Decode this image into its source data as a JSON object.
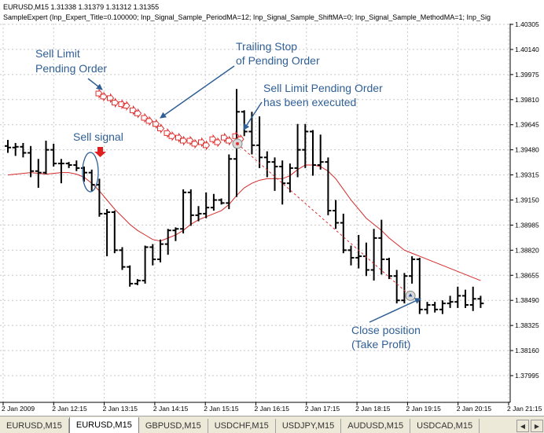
{
  "header": {
    "line1": "EURUSD,M15  1.31338 1.31379 1.31312 1.31355",
    "line2": "SampleExpert (Inp_Expert_Title=0.100000; Inp_Signal_Sample_PeriodMA=12; Inp_Signal_Sample_ShiftMA=0; Inp_Signal_Sample_MethodMA=1; Inp_Sig"
  },
  "annotations": {
    "sell_limit": [
      "Sell Limit",
      "Pending Order"
    ],
    "trailing": [
      "Trailing Stop",
      "of Pending Order"
    ],
    "executed": [
      "Sell Limit Pending Order",
      "has been executed"
    ],
    "sell_signal": "Sell signal",
    "close": [
      "Close position",
      "(Take Profit)"
    ]
  },
  "tabs": [
    {
      "label": "EURUSD,M15",
      "active": false
    },
    {
      "label": "EURUSD,M15",
      "active": true
    },
    {
      "label": "GBPUSD,M15",
      "active": false
    },
    {
      "label": "USDCHF,M15",
      "active": false
    },
    {
      "label": "USDJPY,M15",
      "active": false
    },
    {
      "label": "AUDUSD,M15",
      "active": false
    },
    {
      "label": "USDCAD,M15",
      "active": false
    }
  ],
  "colors": {
    "grid": "#c8c8c8",
    "candle": "#000000",
    "ma": "#d42a2a",
    "annotation": "#2f5f95",
    "pending": "#e03030"
  },
  "chart_data": {
    "type": "ohlc",
    "symbol": "EURUSD",
    "timeframe": "M15",
    "y_ticks": [
      "1.40305",
      "1.40140",
      "1.39975",
      "1.39810",
      "1.39645",
      "1.39480",
      "1.39315",
      "1.39150",
      "1.38985",
      "1.38820",
      "1.38655",
      "1.38490",
      "1.38325",
      "1.38160",
      "1.37995"
    ],
    "x_ticks": [
      "2 Jan 2009",
      "2 Jan 12:15",
      "2 Jan 13:15",
      "2 Jan 14:15",
      "2 Jan 15:15",
      "2 Jan 16:15",
      "2 Jan 17:15",
      "2 Jan 18:15",
      "2 Jan 19:15",
      "2 Jan 20:15",
      "2 Jan 21:15"
    ],
    "bars": [
      [
        1.39505,
        1.39545,
        1.3946,
        1.39495
      ],
      [
        1.39495,
        1.39525,
        1.3944,
        1.395
      ],
      [
        1.395,
        1.39525,
        1.3943,
        1.3946
      ],
      [
        1.3946,
        1.39505,
        1.393,
        1.3934
      ],
      [
        1.3934,
        1.3942,
        1.3923,
        1.3933
      ],
      [
        1.3933,
        1.3954,
        1.3932,
        1.3948
      ],
      [
        1.3948,
        1.3952,
        1.3937,
        1.3939
      ],
      [
        1.3939,
        1.3942,
        1.3926,
        1.3939
      ],
      [
        1.3939,
        1.394,
        1.3936,
        1.3938
      ],
      [
        1.3938,
        1.3941,
        1.3934,
        1.3936
      ],
      [
        1.3936,
        1.3937,
        1.3927,
        1.3933
      ],
      [
        1.3933,
        1.3935,
        1.3921,
        1.3925
      ],
      [
        1.3925,
        1.3929,
        1.3904,
        1.3906
      ],
      [
        1.3906,
        1.3909,
        1.3878,
        1.3907
      ],
      [
        1.3907,
        1.3908,
        1.388,
        1.3882
      ],
      [
        1.3882,
        1.3884,
        1.3869,
        1.3871
      ],
      [
        1.3871,
        1.3872,
        1.3858,
        1.386
      ],
      [
        1.386,
        1.3863,
        1.3859,
        1.3862
      ],
      [
        1.3862,
        1.3885,
        1.386,
        1.3884
      ],
      [
        1.3884,
        1.3886,
        1.3872,
        1.3876
      ],
      [
        1.3876,
        1.3889,
        1.3874,
        1.3886
      ],
      [
        1.3886,
        1.3896,
        1.3879,
        1.3895
      ],
      [
        1.3895,
        1.3897,
        1.3888,
        1.3896
      ],
      [
        1.3896,
        1.3922,
        1.3893,
        1.392
      ],
      [
        1.392,
        1.3922,
        1.3898,
        1.3905
      ],
      [
        1.3905,
        1.3911,
        1.3901,
        1.3906
      ],
      [
        1.3906,
        1.392,
        1.3903,
        1.391
      ],
      [
        1.391,
        1.3919,
        1.3908,
        1.3915
      ],
      [
        1.3915,
        1.3916,
        1.3912,
        1.3913
      ],
      [
        1.3913,
        1.3945,
        1.3909,
        1.3942
      ],
      [
        1.3942,
        1.3988,
        1.3917,
        1.3973
      ],
      [
        1.3973,
        1.3974,
        1.3957,
        1.396
      ],
      [
        1.396,
        1.3973,
        1.3945,
        1.3951
      ],
      [
        1.3951,
        1.397,
        1.3936,
        1.3943
      ],
      [
        1.3943,
        1.3947,
        1.393,
        1.394
      ],
      [
        1.394,
        1.3943,
        1.3921,
        1.3937
      ],
      [
        1.3937,
        1.3941,
        1.3912,
        1.3926
      ],
      [
        1.3926,
        1.3939,
        1.392,
        1.3936
      ],
      [
        1.3936,
        1.3965,
        1.393,
        1.3948
      ],
      [
        1.3948,
        1.3965,
        1.3936,
        1.396
      ],
      [
        1.396,
        1.3961,
        1.3931,
        1.3938
      ],
      [
        1.3938,
        1.3958,
        1.3935,
        1.394
      ],
      [
        1.394,
        1.3943,
        1.3905,
        1.3908
      ],
      [
        1.3908,
        1.3915,
        1.3896,
        1.39
      ],
      [
        1.39,
        1.3906,
        1.388,
        1.3882
      ],
      [
        1.3882,
        1.3885,
        1.3872,
        1.3877
      ],
      [
        1.3877,
        1.3892,
        1.387,
        1.3878
      ],
      [
        1.3878,
        1.3887,
        1.3865,
        1.3869
      ],
      [
        1.3869,
        1.3896,
        1.3862,
        1.389
      ],
      [
        1.389,
        1.3902,
        1.3866,
        1.3876
      ],
      [
        1.3876,
        1.3877,
        1.3863,
        1.3865
      ],
      [
        1.3865,
        1.3869,
        1.3847,
        1.3849
      ],
      [
        1.3849,
        1.3867,
        1.3847,
        1.3865
      ],
      [
        1.3865,
        1.3878,
        1.386,
        1.3876
      ],
      [
        1.3876,
        1.3877,
        1.384,
        1.3843
      ],
      [
        1.3843,
        1.3848,
        1.384,
        1.3846
      ],
      [
        1.3846,
        1.3848,
        1.3841,
        1.3843
      ],
      [
        1.3843,
        1.3849,
        1.384,
        1.3847
      ],
      [
        1.3847,
        1.3852,
        1.3844,
        1.3848
      ],
      [
        1.3848,
        1.3858,
        1.3844,
        1.3852
      ],
      [
        1.3852,
        1.3856,
        1.3844,
        1.3846
      ],
      [
        1.3846,
        1.3858,
        1.3842,
        1.385
      ],
      [
        1.385,
        1.3852,
        1.3844,
        1.3847
      ]
    ],
    "ma": [
      1.39315,
      1.3932,
      1.39325,
      1.3933,
      1.39325,
      1.3932,
      1.39325,
      1.3933,
      1.3933,
      1.3932,
      1.393,
      1.3926,
      1.3921,
      1.3915,
      1.3909,
      1.3904,
      1.3899,
      1.3895,
      1.3892,
      1.3889,
      1.3888,
      1.389,
      1.3892,
      1.3895,
      1.3899,
      1.3902,
      1.3904,
      1.3906,
      1.3908,
      1.3912,
      1.3918,
      1.3923,
      1.3926,
      1.3928,
      1.3929,
      1.3929,
      1.3929,
      1.3931,
      1.3935,
      1.3938,
      1.3938,
      1.3937,
      1.3934,
      1.3929,
      1.3922,
      1.3915,
      1.3909,
      1.3903,
      1.3899,
      1.3895,
      1.389,
      1.3886,
      1.3882,
      1.388,
      1.3878,
      1.3876,
      1.3874,
      1.3872,
      1.387,
      1.3868,
      1.3866,
      1.3864,
      1.3862
    ],
    "pending_orders": [
      [
        1.3985,
        1.3983
      ],
      [
        1.3982,
        1.3979
      ],
      [
        1.3978,
        1.3977
      ],
      [
        1.3974,
        1.3972
      ],
      [
        1.3969,
        1.3967
      ],
      [
        1.3965,
        1.3962
      ],
      [
        1.3959,
        1.3957
      ],
      [
        1.3956,
        1.3954
      ],
      [
        1.3954,
        1.3952
      ],
      [
        1.3953,
        1.3951
      ],
      [
        1.3955,
        1.3953
      ],
      [
        1.3956,
        1.3954
      ],
      [
        1.3957,
        1.3955
      ]
    ],
    "entry": {
      "bar": 30,
      "price": 1.3952
    },
    "exit": {
      "bar": 53,
      "price": 1.3852
    }
  }
}
